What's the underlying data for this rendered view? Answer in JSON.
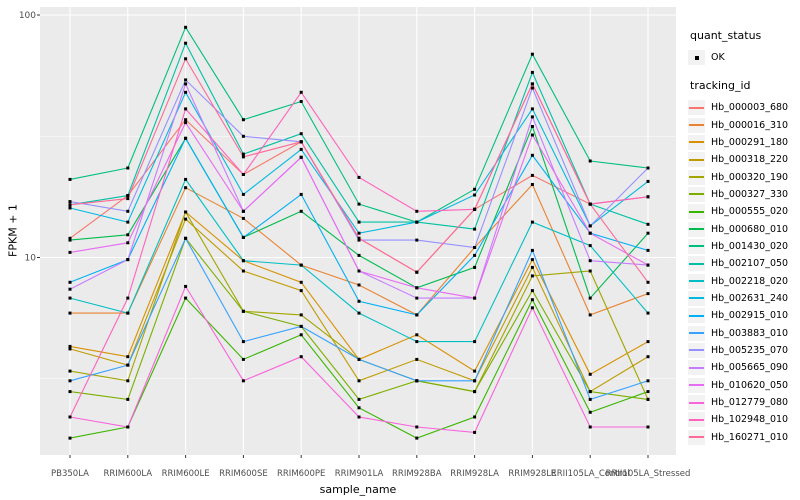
{
  "figure": {
    "background": "#FFFFFF",
    "panel_background": "#EBEBEB",
    "grid_color": "#FFFFFF",
    "tick_text_color": "#4D4D4D",
    "tick_mark_color": "#333333",
    "point_color": "#000000"
  },
  "axes": {
    "x_title": "sample_name",
    "y_title": "FPKM + 1",
    "y_tick_labels": [
      "100",
      "10"
    ]
  },
  "legend": {
    "quant_status_title": "quant_status",
    "quant_status_items": [
      {
        "label": "OK",
        "marker_color": "#000000"
      }
    ],
    "tracking_title": "tracking_id"
  },
  "chart_data": {
    "type": "line",
    "title": "",
    "xlabel": "sample_name",
    "ylabel": "FPKM + 1",
    "legend_position": "right",
    "grid": true,
    "x_categories": [
      "PB350LA",
      "RRIM600LA",
      "RRIM600LE",
      "RRIM600SE",
      "RRIM600PE",
      "RRIM901LA",
      "RRIM928BA",
      "RRIM928LA",
      "RRIM928LE",
      "RRII105LA_Control",
      "RRII105LA_Stressed"
    ],
    "y_axis": {
      "scale": "log10",
      "major_ticks": [
        10,
        100
      ],
      "minor_gridlines": [
        3.162,
        31.62
      ],
      "range_approx": [
        1.5,
        110
      ]
    },
    "quant_status_all_points": "OK",
    "series": [
      {
        "name": "Hb_000003_680",
        "color": "#F8766D",
        "values": [
          12.0,
          18.0,
          37.0,
          22.0,
          30.0,
          12.0,
          8.7,
          15.8,
          21.8,
          16.6,
          17.8
        ]
      },
      {
        "name": "Hb_000016_310",
        "color": "#EA8331",
        "values": [
          5.9,
          5.9,
          19.4,
          14.5,
          9.3,
          7.7,
          5.8,
          11.0,
          20.0,
          5.8,
          7.1
        ]
      },
      {
        "name": "Hb_000291_180",
        "color": "#D89000",
        "values": [
          4.3,
          3.9,
          15.4,
          9.7,
          7.9,
          3.8,
          4.8,
          3.4,
          9.8,
          3.3,
          4.5
        ]
      },
      {
        "name": "Hb_000318_220",
        "color": "#C09B00",
        "values": [
          4.2,
          3.6,
          14.4,
          8.8,
          7.3,
          3.1,
          3.8,
          3.1,
          9.1,
          2.8,
          3.9
        ]
      },
      {
        "name": "Hb_000320_190",
        "color": "#A3A500",
        "values": [
          3.4,
          3.1,
          15.4,
          6.0,
          5.8,
          3.8,
          3.1,
          2.8,
          8.4,
          8.8,
          2.6
        ]
      },
      {
        "name": "Hb_000327_330",
        "color": "#7CAE00",
        "values": [
          2.8,
          2.6,
          12.0,
          6.0,
          5.2,
          2.6,
          3.1,
          2.8,
          7.3,
          2.8,
          2.6
        ]
      },
      {
        "name": "Hb_000555_020",
        "color": "#39B600",
        "values": [
          1.8,
          2.0,
          6.8,
          3.8,
          4.8,
          2.4,
          1.8,
          2.2,
          6.7,
          2.3,
          2.8
        ]
      },
      {
        "name": "Hb_000680_010",
        "color": "#00BB4E",
        "values": [
          11.8,
          12.4,
          31.0,
          12.1,
          15.5,
          10.2,
          7.5,
          9.1,
          34.7,
          6.8,
          12.6
        ]
      },
      {
        "name": "Hb_001430_020",
        "color": "#00BF7D",
        "values": [
          21.0,
          23.4,
          89.0,
          37.0,
          44.0,
          16.6,
          14.0,
          19.1,
          68.9,
          25.0,
          23.4
        ]
      },
      {
        "name": "Hb_002107_050",
        "color": "#00C1A3",
        "values": [
          16.5,
          18.0,
          76.5,
          26.7,
          32.4,
          14.0,
          14.0,
          13.1,
          58.0,
          16.6,
          13.7
        ]
      },
      {
        "name": "Hb_002218_020",
        "color": "#00BFC4",
        "values": [
          6.8,
          5.9,
          21.0,
          9.7,
          9.3,
          5.9,
          4.5,
          4.5,
          14.0,
          11.2,
          5.9
        ]
      },
      {
        "name": "Hb_002631_240",
        "color": "#00BAE0",
        "values": [
          16.0,
          14.0,
          48.0,
          18.2,
          27.9,
          12.6,
          14.0,
          18.1,
          41.0,
          13.5,
          20.6
        ]
      },
      {
        "name": "Hb_002915_010",
        "color": "#00B0F6",
        "values": [
          7.9,
          9.8,
          31.0,
          12.1,
          18.2,
          6.6,
          5.8,
          10.2,
          26.4,
          12.6,
          10.7
        ]
      },
      {
        "name": "Hb_003883_010",
        "color": "#35A2FF",
        "values": [
          3.1,
          3.6,
          12.0,
          4.5,
          5.2,
          3.8,
          3.1,
          3.1,
          10.7,
          2.6,
          3.1
        ]
      },
      {
        "name": "Hb_005235_070",
        "color": "#9590FF",
        "values": [
          17.0,
          15.5,
          54.0,
          31.6,
          30.0,
          11.8,
          11.8,
          11.0,
          50.0,
          13.5,
          23.4
        ]
      },
      {
        "name": "Hb_005665_090",
        "color": "#C77CFF",
        "values": [
          7.4,
          9.8,
          52.0,
          15.5,
          25.9,
          8.8,
          6.8,
          6.8,
          38.0,
          9.7,
          9.3
        ]
      },
      {
        "name": "Hb_010620_050",
        "color": "#E76BF3",
        "values": [
          10.5,
          11.5,
          36.0,
          15.5,
          25.9,
          8.8,
          7.5,
          6.8,
          32.0,
          12.6,
          9.3
        ]
      },
      {
        "name": "Hb_012779_080",
        "color": "#FA62DB",
        "values": [
          2.2,
          2.0,
          7.6,
          3.1,
          3.9,
          2.2,
          2.0,
          1.9,
          6.2,
          2.0,
          2.0
        ]
      },
      {
        "name": "Hb_102948_010",
        "color": "#FF62BC",
        "values": [
          2.2,
          6.8,
          41.0,
          22.0,
          48.0,
          21.4,
          15.5,
          15.8,
          52.0,
          16.6,
          17.8
        ]
      },
      {
        "name": "Hb_160271_010",
        "color": "#FF6A98",
        "values": [
          16.5,
          17.5,
          66.0,
          26.0,
          30.0,
          12.0,
          8.7,
          15.8,
          52.0,
          16.6,
          7.9
        ]
      }
    ]
  }
}
